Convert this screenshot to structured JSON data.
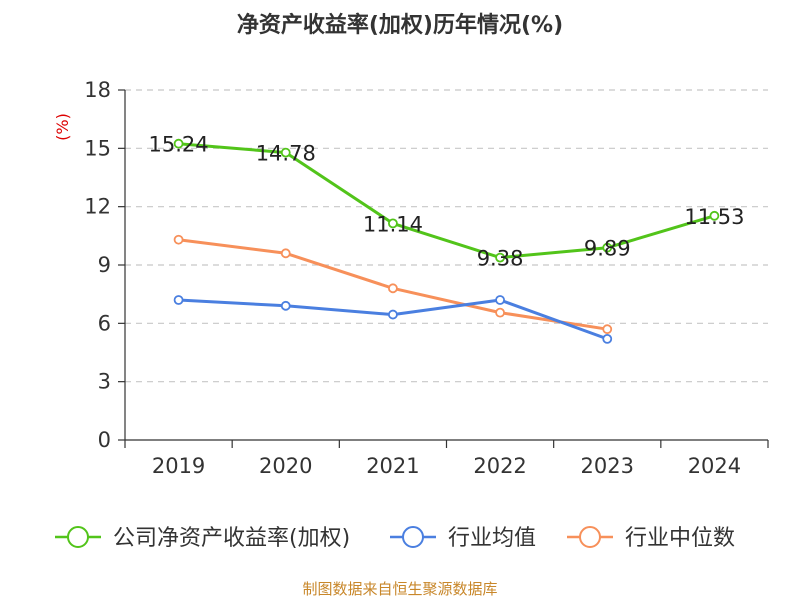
{
  "chart_data": {
    "type": "line",
    "title": "净资产收益率(加权)历年情况(%)",
    "ylabel": "(%)",
    "xlabel": "",
    "categories": [
      "2019",
      "2020",
      "2021",
      "2022",
      "2023",
      "2024"
    ],
    "ylim": [
      0,
      18
    ],
    "yticks": [
      0,
      3,
      6,
      9,
      12,
      15,
      18
    ],
    "grid": true,
    "legend_position": "bottom",
    "series": [
      {
        "name": "公司净资产收益率(加权)",
        "color": "#52c41a",
        "values": [
          15.24,
          14.78,
          11.14,
          9.38,
          9.89,
          11.53
        ],
        "show_labels": true
      },
      {
        "name": "行业均值",
        "color": "#4a7fe0",
        "values": [
          7.2,
          6.9,
          6.45,
          7.2,
          5.2,
          null
        ],
        "show_labels": false
      },
      {
        "name": "行业中位数",
        "color": "#f7905a",
        "values": [
          10.3,
          9.6,
          7.8,
          6.55,
          5.7,
          null
        ],
        "show_labels": false
      }
    ],
    "value_labels": [
      "15.24",
      "14.78",
      "11.14",
      "9.38",
      "9.89",
      "11.53"
    ],
    "source": "制图数据来自恒生聚源数据库"
  }
}
